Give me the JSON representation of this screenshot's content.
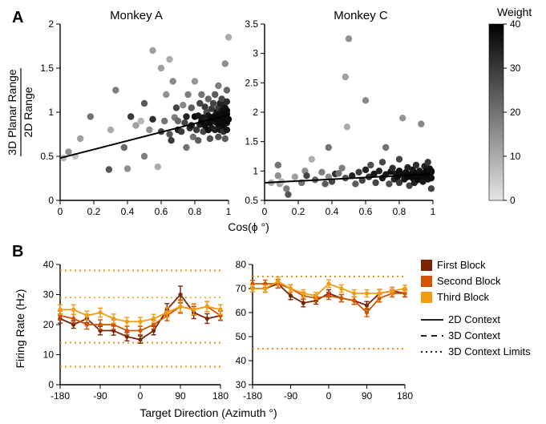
{
  "figure_width": 681,
  "figure_height": 529,
  "background_color": "#ffffff",
  "axis_color": "#000000",
  "text_color": "#000000",
  "panelA": {
    "label": "A",
    "ylabel_top": "3D Planar Range",
    "ylabel_bot": "2D Range",
    "xlabel": "Cos(ϕ °)",
    "left_title": "Monkey A",
    "right_title": "Monkey C",
    "colorbar_title": "Weight",
    "colorbar_ticks": [
      0,
      10,
      20,
      30,
      40
    ],
    "left": {
      "xlim": [
        0,
        1
      ],
      "xticks": [
        0,
        0.2,
        0.4,
        0.6,
        0.8,
        1
      ],
      "ylim": [
        0,
        2
      ],
      "yticks": [
        0,
        0.5,
        1,
        1.5,
        2
      ],
      "trend": [
        [
          0,
          0.48
        ],
        [
          1,
          0.97
        ]
      ],
      "points": [
        [
          0.02,
          0.48,
          8
        ],
        [
          0.05,
          0.55,
          15
        ],
        [
          0.09,
          0.5,
          6
        ],
        [
          0.12,
          0.7,
          12
        ],
        [
          0.18,
          0.95,
          20
        ],
        [
          0.29,
          0.35,
          25
        ],
        [
          0.3,
          0.8,
          10
        ],
        [
          0.33,
          1.25,
          18
        ],
        [
          0.38,
          0.6,
          22
        ],
        [
          0.4,
          0.36,
          15
        ],
        [
          0.42,
          0.95,
          30
        ],
        [
          0.45,
          0.85,
          12
        ],
        [
          0.48,
          0.9,
          8
        ],
        [
          0.5,
          0.5,
          18
        ],
        [
          0.5,
          1.1,
          24
        ],
        [
          0.53,
          0.8,
          15
        ],
        [
          0.55,
          0.92,
          32
        ],
        [
          0.58,
          0.38,
          10
        ],
        [
          0.6,
          0.78,
          28
        ],
        [
          0.6,
          1.5,
          12
        ],
        [
          0.62,
          0.9,
          20
        ],
        [
          0.63,
          1.2,
          15
        ],
        [
          0.65,
          0.75,
          25
        ],
        [
          0.66,
          0.68,
          30
        ],
        [
          0.68,
          0.94,
          18
        ],
        [
          0.69,
          1.05,
          28
        ],
        [
          0.7,
          0.8,
          35
        ],
        [
          0.7,
          0.9,
          22
        ],
        [
          0.72,
          0.78,
          30
        ],
        [
          0.73,
          1.08,
          16
        ],
        [
          0.74,
          0.88,
          28
        ],
        [
          0.75,
          0.6,
          20
        ],
        [
          0.75,
          0.95,
          34
        ],
        [
          0.76,
          1.2,
          18
        ],
        [
          0.77,
          0.82,
          32
        ],
        [
          0.78,
          1.05,
          24
        ],
        [
          0.78,
          0.85,
          36
        ],
        [
          0.79,
          0.72,
          20
        ],
        [
          0.8,
          0.95,
          38
        ],
        [
          0.8,
          1.35,
          14
        ],
        [
          0.81,
          0.8,
          30
        ],
        [
          0.82,
          0.96,
          36
        ],
        [
          0.82,
          0.68,
          24
        ],
        [
          0.83,
          1.1,
          28
        ],
        [
          0.83,
          0.86,
          34
        ],
        [
          0.84,
          0.9,
          38
        ],
        [
          0.84,
          1.2,
          20
        ],
        [
          0.85,
          0.78,
          28
        ],
        [
          0.85,
          0.94,
          36
        ],
        [
          0.86,
          1.06,
          30
        ],
        [
          0.86,
          0.85,
          38
        ],
        [
          0.87,
          0.92,
          34
        ],
        [
          0.87,
          1.0,
          26
        ],
        [
          0.88,
          0.8,
          38
        ],
        [
          0.88,
          0.96,
          36
        ],
        [
          0.88,
          1.15,
          22
        ],
        [
          0.89,
          0.88,
          38
        ],
        [
          0.89,
          0.7,
          26
        ],
        [
          0.9,
          0.94,
          38
        ],
        [
          0.9,
          1.04,
          30
        ],
        [
          0.9,
          0.82,
          36
        ],
        [
          0.91,
          1.1,
          28
        ],
        [
          0.91,
          0.9,
          38
        ],
        [
          0.92,
          0.96,
          38
        ],
        [
          0.92,
          0.8,
          34
        ],
        [
          0.92,
          1.2,
          24
        ],
        [
          0.93,
          0.88,
          38
        ],
        [
          0.93,
          1.0,
          36
        ],
        [
          0.93,
          0.94,
          38
        ],
        [
          0.94,
          1.05,
          30
        ],
        [
          0.94,
          0.86,
          38
        ],
        [
          0.94,
          0.72,
          26
        ],
        [
          0.94,
          1.3,
          18
        ],
        [
          0.95,
          0.98,
          38
        ],
        [
          0.95,
          0.9,
          38
        ],
        [
          0.95,
          1.1,
          34
        ],
        [
          0.95,
          0.8,
          36
        ],
        [
          0.96,
          0.94,
          38
        ],
        [
          0.96,
          1.02,
          36
        ],
        [
          0.96,
          0.88,
          38
        ],
        [
          0.96,
          1.15,
          28
        ],
        [
          0.97,
          0.92,
          38
        ],
        [
          0.97,
          1.0,
          38
        ],
        [
          0.97,
          0.78,
          32
        ],
        [
          0.97,
          1.08,
          34
        ],
        [
          0.97,
          0.85,
          38
        ],
        [
          0.98,
          0.96,
          38
        ],
        [
          0.98,
          0.9,
          38
        ],
        [
          0.98,
          1.05,
          36
        ],
        [
          0.98,
          1.55,
          15
        ],
        [
          0.98,
          0.7,
          24
        ],
        [
          0.99,
          0.94,
          38
        ],
        [
          0.99,
          1.02,
          38
        ],
        [
          0.99,
          0.88,
          38
        ],
        [
          0.99,
          0.98,
          38
        ],
        [
          0.99,
          1.12,
          32
        ],
        [
          0.99,
          0.8,
          36
        ],
        [
          0.99,
          1.25,
          22
        ],
        [
          1.0,
          0.92,
          38
        ],
        [
          1.0,
          1.85,
          10
        ],
        [
          0.55,
          1.7,
          12
        ],
        [
          0.65,
          1.6,
          10
        ],
        [
          0.67,
          1.35,
          16
        ]
      ]
    },
    "right": {
      "xlim": [
        0,
        1
      ],
      "xticks": [
        0,
        0.2,
        0.4,
        0.6,
        0.8,
        1
      ],
      "ylim": [
        0.5,
        3.5
      ],
      "yticks": [
        0.5,
        1,
        1.5,
        2,
        2.5,
        3,
        3.5
      ],
      "trend": [
        [
          0,
          0.8
        ],
        [
          1,
          0.95
        ]
      ],
      "points": [
        [
          0.04,
          0.8,
          10
        ],
        [
          0.08,
          1.1,
          20
        ],
        [
          0.08,
          0.92,
          15
        ],
        [
          0.09,
          0.78,
          12
        ],
        [
          0.1,
          0.82,
          8
        ],
        [
          0.13,
          0.7,
          18
        ],
        [
          0.14,
          0.6,
          25
        ],
        [
          0.18,
          0.9,
          12
        ],
        [
          0.22,
          0.8,
          20
        ],
        [
          0.24,
          1.0,
          15
        ],
        [
          0.25,
          0.92,
          28
        ],
        [
          0.28,
          1.2,
          10
        ],
        [
          0.3,
          0.85,
          22
        ],
        [
          0.34,
          0.98,
          18
        ],
        [
          0.36,
          0.78,
          24
        ],
        [
          0.38,
          0.9,
          16
        ],
        [
          0.38,
          1.4,
          20
        ],
        [
          0.4,
          0.82,
          28
        ],
        [
          0.42,
          0.95,
          32
        ],
        [
          0.44,
          0.96,
          20
        ],
        [
          0.46,
          1.05,
          18
        ],
        [
          0.48,
          0.88,
          26
        ],
        [
          0.48,
          2.6,
          12
        ],
        [
          0.49,
          1.75,
          10
        ],
        [
          0.5,
          3.25,
          15
        ],
        [
          0.52,
          0.92,
          34
        ],
        [
          0.54,
          0.78,
          24
        ],
        [
          0.56,
          0.98,
          30
        ],
        [
          0.58,
          0.84,
          28
        ],
        [
          0.6,
          1.02,
          34
        ],
        [
          0.6,
          2.2,
          16
        ],
        [
          0.62,
          0.9,
          32
        ],
        [
          0.63,
          1.1,
          26
        ],
        [
          0.65,
          0.95,
          36
        ],
        [
          0.66,
          0.8,
          28
        ],
        [
          0.68,
          1.0,
          34
        ],
        [
          0.7,
          0.88,
          36
        ],
        [
          0.7,
          1.15,
          28
        ],
        [
          0.72,
          0.94,
          36
        ],
        [
          0.72,
          1.4,
          20
        ],
        [
          0.74,
          0.78,
          26
        ],
        [
          0.75,
          0.99,
          38
        ],
        [
          0.76,
          1.05,
          32
        ],
        [
          0.77,
          0.86,
          34
        ],
        [
          0.78,
          0.95,
          36
        ],
        [
          0.79,
          0.9,
          38
        ],
        [
          0.8,
          1.0,
          38
        ],
        [
          0.8,
          1.2,
          28
        ],
        [
          0.8,
          0.8,
          30
        ],
        [
          0.82,
          0.94,
          38
        ],
        [
          0.82,
          1.9,
          14
        ],
        [
          0.83,
          0.86,
          36
        ],
        [
          0.84,
          0.98,
          38
        ],
        [
          0.85,
          1.06,
          34
        ],
        [
          0.85,
          0.9,
          38
        ],
        [
          0.86,
          0.75,
          28
        ],
        [
          0.87,
          0.94,
          38
        ],
        [
          0.88,
          1.02,
          36
        ],
        [
          0.88,
          0.88,
          38
        ],
        [
          0.89,
          0.8,
          34
        ],
        [
          0.9,
          0.96,
          38
        ],
        [
          0.9,
          1.1,
          32
        ],
        [
          0.91,
          0.85,
          38
        ],
        [
          0.92,
          0.92,
          38
        ],
        [
          0.92,
          1.0,
          36
        ],
        [
          0.93,
          1.8,
          16
        ],
        [
          0.93,
          0.88,
          38
        ],
        [
          0.94,
          0.96,
          38
        ],
        [
          0.94,
          0.82,
          36
        ],
        [
          0.95,
          0.9,
          38
        ],
        [
          0.95,
          1.08,
          34
        ],
        [
          0.96,
          0.94,
          38
        ],
        [
          0.96,
          1.0,
          38
        ],
        [
          0.97,
          0.86,
          36
        ],
        [
          0.97,
          0.92,
          38
        ],
        [
          0.97,
          1.15,
          30
        ],
        [
          0.98,
          0.96,
          38
        ],
        [
          0.98,
          0.9,
          38
        ],
        [
          0.98,
          1.04,
          36
        ],
        [
          0.99,
          0.88,
          38
        ],
        [
          0.99,
          0.7,
          28
        ],
        [
          0.99,
          0.98,
          38
        ],
        [
          0.99,
          1.0,
          38
        ]
      ]
    }
  },
  "panelB": {
    "label": "B",
    "ylabel": "Firing Rate (Hz)",
    "xlabel": "Target Direction (Azimuth °)",
    "xticks": [
      -180,
      -90,
      0,
      90,
      180
    ],
    "legend": {
      "block1": "First Block",
      "block2": "Second Block",
      "block3": "Third Block",
      "ctx2d": "2D Context",
      "ctx3d": "3D Context",
      "ctxLimits": "3D Context Limits"
    },
    "colors": {
      "block1": "#7a2408",
      "block2": "#d35400",
      "block3": "#f39c12"
    },
    "left": {
      "ylim": [
        0,
        40
      ],
      "yticks": [
        0,
        10,
        20,
        30,
        40
      ],
      "limit_pairs": [
        [
          6,
          14
        ],
        [
          29,
          38
        ]
      ],
      "x": [
        -180,
        -150,
        -120,
        -90,
        -60,
        -30,
        0,
        30,
        60,
        90,
        120,
        150,
        180
      ],
      "block1": {
        "y": [
          22,
          20,
          22,
          18,
          18,
          16,
          15,
          18,
          25,
          30,
          24,
          22,
          23
        ],
        "e": [
          1.5,
          1.2,
          1.4,
          1.4,
          1.5,
          1.4,
          1.2,
          1.4,
          2.0,
          2.8,
          2.0,
          1.6,
          1.6
        ]
      },
      "block2": {
        "y": [
          23,
          22,
          20,
          20,
          20,
          18,
          18,
          20,
          23,
          26,
          25,
          26,
          23
        ],
        "e": [
          1.5,
          1.4,
          1.5,
          1.6,
          1.6,
          1.4,
          1.4,
          1.4,
          1.7,
          2.2,
          1.9,
          1.7,
          1.5
        ]
      },
      "block3": {
        "y": [
          25,
          25,
          23,
          24,
          22,
          21,
          21,
          22,
          24,
          26,
          25,
          26,
          25
        ],
        "e": [
          1.6,
          1.6,
          1.5,
          1.5,
          1.5,
          1.4,
          1.4,
          1.4,
          1.6,
          1.8,
          1.7,
          1.7,
          1.6
        ]
      }
    },
    "right": {
      "ylim": [
        30,
        80
      ],
      "yticks": [
        30,
        40,
        50,
        60,
        70,
        80
      ],
      "limit_pairs": [
        [
          45,
          75
        ]
      ],
      "x": [
        -180,
        -150,
        -120,
        -90,
        -60,
        -30,
        0,
        30,
        60,
        90,
        120,
        150,
        180
      ],
      "block1": {
        "y": [
          70,
          70,
          72,
          67,
          64,
          65,
          68,
          66,
          65,
          63,
          68,
          69,
          68
        ],
        "e": [
          1.4,
          1.5,
          1.8,
          1.6,
          1.6,
          1.5,
          1.5,
          1.5,
          1.6,
          1.6,
          1.6,
          1.5,
          1.5
        ]
      },
      "block2": {
        "y": [
          72,
          72,
          72,
          70,
          67,
          66,
          67,
          66,
          65,
          60,
          66,
          68,
          68
        ],
        "e": [
          1.4,
          1.5,
          1.8,
          1.6,
          1.5,
          1.5,
          1.5,
          1.5,
          1.6,
          1.7,
          1.6,
          1.5,
          1.4
        ]
      },
      "block3": {
        "y": [
          70,
          70,
          73,
          70,
          68,
          67,
          72,
          70,
          68,
          68,
          68,
          69,
          70
        ],
        "e": [
          1.4,
          1.4,
          1.8,
          1.5,
          1.5,
          1.4,
          1.6,
          1.5,
          1.5,
          1.5,
          1.5,
          1.4,
          1.4
        ]
      }
    }
  }
}
